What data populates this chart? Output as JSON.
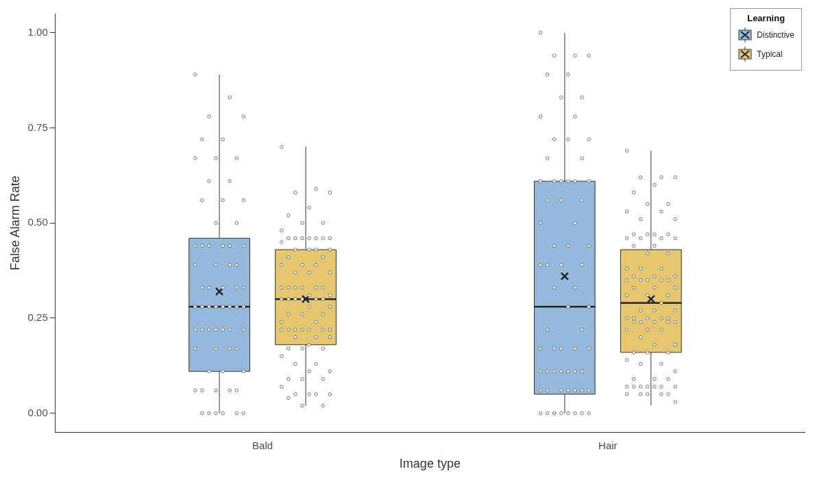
{
  "chart_data": {
    "type": "box",
    "xlabel": "Image type",
    "ylabel": "False Alarm Rate",
    "legend_title": "Learning",
    "legend": "top right",
    "grid": false,
    "marker": "circle",
    "categories": [
      "Bald",
      "Hair"
    ],
    "ylim": [
      -0.05,
      1.05
    ],
    "yticks": [
      {
        "value": 0,
        "label": "0.00"
      },
      {
        "value": 0.25,
        "label": "0.25"
      },
      {
        "value": 0.5,
        "label": "0.50"
      },
      {
        "value": 0.75,
        "label": "0.75"
      },
      {
        "value": 1,
        "label": "1.00"
      }
    ],
    "series": [
      {
        "name": "Distinctive",
        "color": "#94b9dc",
        "boxes": [
          {
            "low": 0,
            "q1": 0.11,
            "median": 0.28,
            "q3": 0.46,
            "high": 0.89,
            "mean": 0.32
          },
          {
            "low": 0,
            "q1": 0.05,
            "median": 0.28,
            "q3": 0.61,
            "high": 1.0,
            "mean": 0.36
          }
        ]
      },
      {
        "name": "Typical",
        "color": "#e6c76f",
        "boxes": [
          {
            "low": 0.02,
            "q1": 0.18,
            "median": 0.3,
            "q3": 0.43,
            "high": 0.7,
            "mean": 0.3
          },
          {
            "low": 0.02,
            "q1": 0.16,
            "median": 0.29,
            "q3": 0.43,
            "high": 0.69,
            "mean": 0.3
          }
        ]
      },
      {
        "type": "scatter",
        "color": "#555555",
        "x": [
          "Bald",
          "Bald",
          "Bald",
          "Bald",
          "Bald",
          "Bald",
          "Bald",
          "Bald",
          "Bald",
          "Bald",
          "Bald",
          "Bald",
          "Bald",
          "Bald",
          "Bald",
          "Bald",
          "Bald",
          "Bald",
          "Bald",
          "Bald",
          "Bald",
          "Bald",
          "Bald",
          "Bald",
          "Bald",
          "Bald",
          "Bald",
          "Bald",
          "Bald",
          "Bald",
          "Bald",
          "Bald",
          "Bald",
          "Bald",
          "Bald",
          "Bald",
          "Bald",
          "Bald",
          "Bald",
          "Bald",
          "Bald",
          "Bald",
          "Bald",
          "Bald",
          "Bald",
          "Bald",
          "Bald",
          "Bald",
          "Bald",
          "Bald",
          "Bald",
          "Bald",
          "Bald",
          "Bald",
          "Bald",
          "Bald",
          "Bald",
          "Bald",
          "Bald",
          "Bald",
          "Bald",
          "Bald",
          "Bald",
          "Bald",
          "Hair",
          "Hair",
          "Hair",
          "Hair",
          "Hair",
          "Hair",
          "Hair",
          "Hair",
          "Hair",
          "Hair",
          "Hair",
          "Hair",
          "Hair",
          "Hair",
          "Hair",
          "Hair",
          "Hair",
          "Hair",
          "Hair",
          "Hair",
          "Hair",
          "Hair",
          "Hair",
          "Hair",
          "Hair",
          "Hair",
          "Hair",
          "Hair",
          "Hair",
          "Hair",
          "Hair",
          "Hair",
          "Hair",
          "Hair",
          "Hair",
          "Hair",
          "Hair",
          "Hair",
          "Hair",
          "Hair",
          "Hair",
          "Hair",
          "Hair",
          "Hair",
          "Hair",
          "Hair",
          "Hair",
          "Hair",
          "Hair",
          "Hair",
          "Hair",
          "Hair",
          "Hair",
          "Hair",
          "Hair",
          "Hair",
          "Hair",
          "Hair",
          "Hair",
          "Hair",
          "Hair",
          "Hair",
          "Hair",
          "Hair",
          "Hair",
          "Hair",
          "Hair"
        ],
        "values": [
          0.89,
          0.83,
          0.78,
          0.78,
          0.72,
          0.72,
          0.67,
          0.67,
          0.67,
          0.61,
          0.61,
          0.56,
          0.56,
          0.56,
          0.5,
          0.5,
          0.44,
          0.44,
          0.44,
          0.44,
          0.44,
          0.44,
          0.39,
          0.39,
          0.39,
          0.39,
          0.33,
          0.33,
          0.33,
          0.33,
          0.33,
          0.28,
          0.28,
          0.28,
          0.28,
          0.28,
          0.28,
          0.28,
          0.28,
          0.22,
          0.22,
          0.22,
          0.22,
          0.22,
          0.22,
          0.22,
          0.17,
          0.17,
          0.17,
          0.17,
          0.11,
          0.11,
          0.11,
          0.06,
          0.06,
          0.06,
          0.06,
          0.06,
          0,
          0,
          0,
          0,
          0,
          0,
          1.0,
          0.94,
          0.94,
          0.94,
          0.89,
          0.89,
          0.83,
          0.83,
          0.78,
          0.78,
          0.72,
          0.72,
          0.72,
          0.67,
          0.67,
          0.61,
          0.61,
          0.61,
          0.61,
          0.61,
          0.61,
          0.56,
          0.56,
          0.56,
          0.5,
          0.5,
          0.44,
          0.44,
          0.44,
          0.39,
          0.39,
          0.39,
          0.39,
          0.33,
          0.33,
          0.28,
          0.28,
          0.22,
          0.22,
          0.17,
          0.17,
          0.17,
          0.17,
          0.17,
          0.11,
          0.11,
          0.11,
          0.11,
          0.11,
          0.11,
          0.11,
          0.06,
          0.06,
          0.06,
          0.06,
          0.06,
          0.06,
          0.06,
          0,
          0,
          0,
          0,
          0,
          0,
          0,
          0,
          0
        ]
      },
      {
        "type": "scatter",
        "color": "#555555",
        "x": [
          "Bald",
          "Bald",
          "Bald",
          "Bald",
          "Bald",
          "Bald",
          "Bald",
          "Bald",
          "Bald",
          "Bald",
          "Bald",
          "Bald",
          "Bald",
          "Bald",
          "Bald",
          "Bald",
          "Bald",
          "Bald",
          "Bald",
          "Bald",
          "Bald",
          "Bald",
          "Bald",
          "Bald",
          "Bald",
          "Bald",
          "Bald",
          "Bald",
          "Bald",
          "Bald",
          "Bald",
          "Bald",
          "Bald",
          "Bald",
          "Bald",
          "Bald",
          "Bald",
          "Bald",
          "Bald",
          "Bald",
          "Bald",
          "Bald",
          "Bald",
          "Bald",
          "Bald",
          "Bald",
          "Bald",
          "Bald",
          "Bald",
          "Bald",
          "Bald",
          "Bald",
          "Bald",
          "Bald",
          "Bald",
          "Bald",
          "Bald",
          "Bald",
          "Bald",
          "Bald",
          "Bald",
          "Bald",
          "Bald",
          "Bald",
          "Bald",
          "Bald",
          "Bald",
          "Bald",
          "Bald",
          "Bald",
          "Bald",
          "Bald",
          "Bald",
          "Bald",
          "Bald",
          "Bald",
          "Bald",
          "Bald",
          "Bald",
          "Bald",
          "Hair",
          "Hair",
          "Hair",
          "Hair",
          "Hair",
          "Hair",
          "Hair",
          "Hair",
          "Hair",
          "Hair",
          "Hair",
          "Hair",
          "Hair",
          "Hair",
          "Hair",
          "Hair",
          "Hair",
          "Hair",
          "Hair",
          "Hair",
          "Hair",
          "Hair",
          "Hair",
          "Hair",
          "Hair",
          "Hair",
          "Hair",
          "Hair",
          "Hair",
          "Hair",
          "Hair",
          "Hair",
          "Hair",
          "Hair",
          "Hair",
          "Hair",
          "Hair",
          "Hair",
          "Hair",
          "Hair",
          "Hair",
          "Hair",
          "Hair",
          "Hair",
          "Hair",
          "Hair",
          "Hair",
          "Hair",
          "Hair",
          "Hair",
          "Hair",
          "Hair",
          "Hair",
          "Hair",
          "Hair",
          "Hair",
          "Hair",
          "Hair",
          "Hair",
          "Hair",
          "Hair",
          "Hair",
          "Hair",
          "Hair",
          "Hair",
          "Hair",
          "Hair",
          "Hair",
          "Hair",
          "Hair",
          "Hair",
          "Hair",
          "Hair",
          "Hair",
          "Hair",
          "Hair",
          "Hair",
          "Hair",
          "Hair",
          "Hair",
          "Hair",
          "Hair",
          "Hair",
          "Hair"
        ],
        "values": [
          0.7,
          0.59,
          0.58,
          0.58,
          0.54,
          0.52,
          0.5,
          0.5,
          0.48,
          0.46,
          0.46,
          0.46,
          0.46,
          0.46,
          0.46,
          0.46,
          0.45,
          0.43,
          0.43,
          0.43,
          0.43,
          0.41,
          0.41,
          0.39,
          0.39,
          0.39,
          0.37,
          0.37,
          0.37,
          0.33,
          0.33,
          0.33,
          0.33,
          0.33,
          0.33,
          0.31,
          0.31,
          0.3,
          0.3,
          0.3,
          0.3,
          0.3,
          0.3,
          0.28,
          0.28,
          0.26,
          0.26,
          0.26,
          0.24,
          0.24,
          0.22,
          0.22,
          0.22,
          0.22,
          0.22,
          0.22,
          0.22,
          0.2,
          0.2,
          0.2,
          0.18,
          0.17,
          0.17,
          0.17,
          0.15,
          0.13,
          0.13,
          0.11,
          0.11,
          0.09,
          0.09,
          0.09,
          0.07,
          0.05,
          0.05,
          0.05,
          0.05,
          0.04,
          0.02,
          0.02,
          0.69,
          0.62,
          0.62,
          0.62,
          0.6,
          0.58,
          0.55,
          0.55,
          0.53,
          0.53,
          0.51,
          0.51,
          0.47,
          0.47,
          0.47,
          0.47,
          0.46,
          0.46,
          0.46,
          0.46,
          0.44,
          0.44,
          0.42,
          0.42,
          0.38,
          0.38,
          0.38,
          0.36,
          0.36,
          0.36,
          0.35,
          0.35,
          0.35,
          0.35,
          0.35,
          0.33,
          0.33,
          0.33,
          0.31,
          0.31,
          0.31,
          0.29,
          0.27,
          0.27,
          0.27,
          0.25,
          0.25,
          0.25,
          0.25,
          0.25,
          0.24,
          0.24,
          0.24,
          0.24,
          0.24,
          0.22,
          0.22,
          0.22,
          0.2,
          0.18,
          0.18,
          0.16,
          0.16,
          0.16,
          0.14,
          0.13,
          0.13,
          0.11,
          0.09,
          0.09,
          0.09,
          0.07,
          0.07,
          0.07,
          0.07,
          0.07,
          0.07,
          0.07,
          0.05,
          0.05,
          0.05,
          0.05,
          0.05,
          0.03
        ]
      }
    ]
  }
}
